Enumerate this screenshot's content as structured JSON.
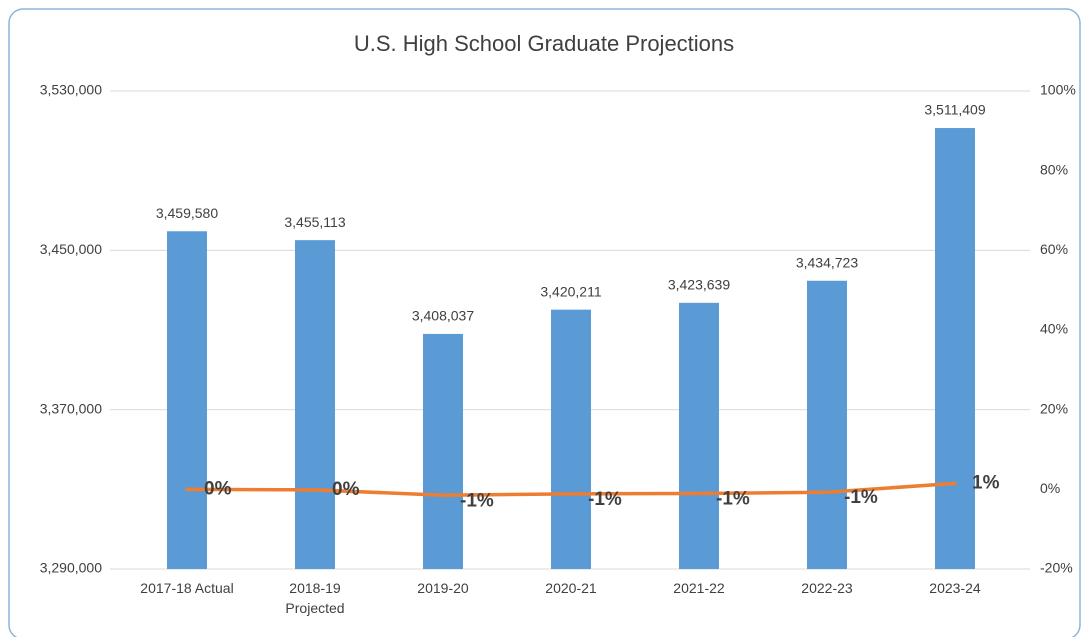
{
  "chart_data": {
    "type": "bar",
    "title": "U.S. High School Graduate Projections",
    "categories": [
      "2017-18 Actual",
      "2018-19 Projected",
      "2019-20",
      "2020-21",
      "2021-22",
      "2022-23",
      "2023-24"
    ],
    "series": [
      {
        "type": "bar",
        "color": "#5b9bd5",
        "values": [
          3459580,
          3455113,
          3408037,
          3420211,
          3423639,
          3434723,
          3511409
        ],
        "value_labels": [
          "3,459,580",
          "3,455,113",
          "3,408,037",
          "3,420,211",
          "3,423,639",
          "3,434,723",
          "3,511,409"
        ]
      },
      {
        "type": "line",
        "axis": "y2",
        "color": "#ed7d31",
        "values": [
          0,
          -0.13,
          -1.49,
          -1.14,
          -1.04,
          -0.72,
          1.49
        ],
        "value_labels": [
          "0%",
          "0%",
          "-1%",
          "-1%",
          "-1%",
          "-1%",
          "1%"
        ]
      }
    ],
    "ylim": [
      3290000,
      3530000
    ],
    "yticks": [
      {
        "value": 3290000,
        "label": "3,290,000"
      },
      {
        "value": 3370000,
        "label": "3,370,000"
      },
      {
        "value": 3450000,
        "label": "3,450,000"
      },
      {
        "value": 3530000,
        "label": "3,530,000"
      }
    ],
    "y2lim": [
      -20,
      100
    ],
    "y2ticks": [
      {
        "value": -20,
        "label": "-20%"
      },
      {
        "value": 0,
        "label": "0%"
      },
      {
        "value": 20,
        "label": "20%"
      },
      {
        "value": 40,
        "label": "40%"
      },
      {
        "value": 60,
        "label": "60%"
      },
      {
        "value": 80,
        "label": "80%"
      },
      {
        "value": 100,
        "label": "100%"
      }
    ],
    "grid": true
  }
}
